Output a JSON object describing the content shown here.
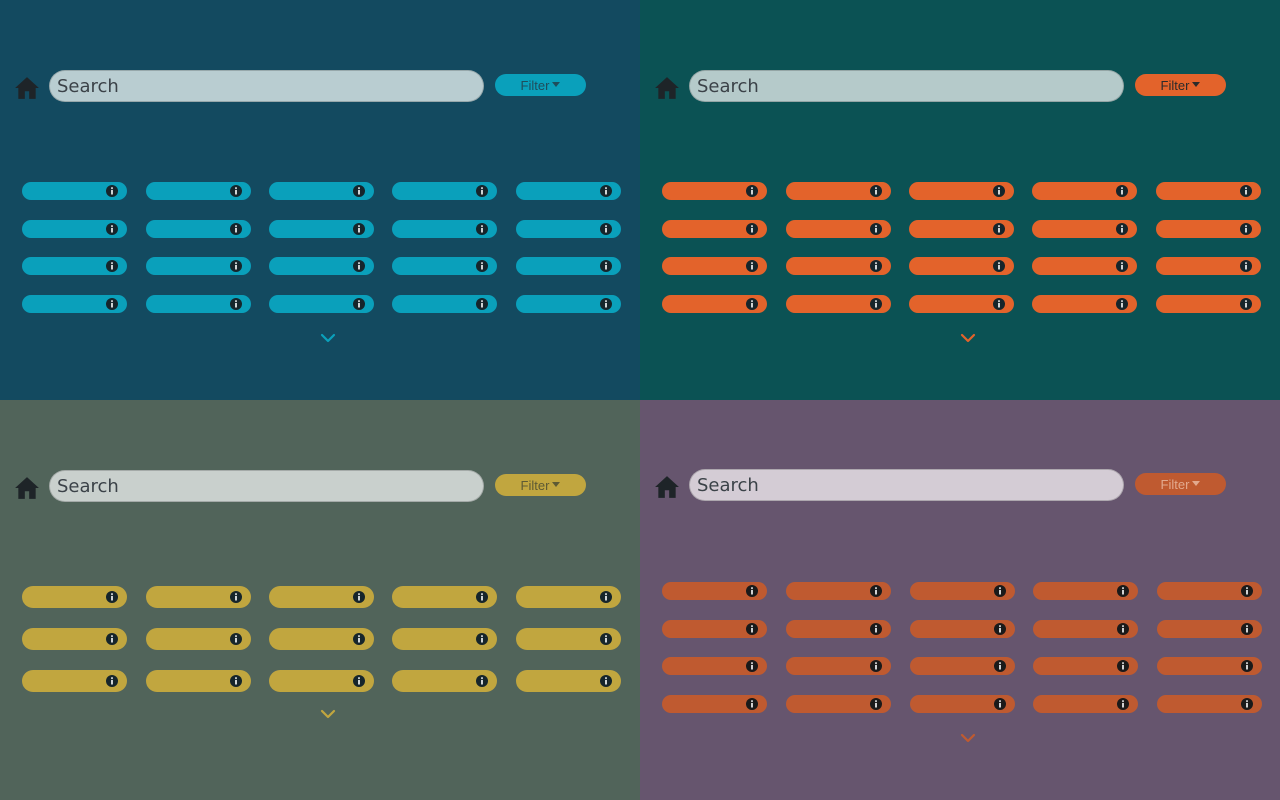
{
  "panels": [
    {
      "id": "teal",
      "background": "#134a60",
      "accent": "#0aa0bb",
      "search_bg": "#b9cdd1",
      "search_placeholder": "Search",
      "filter_label": "Filter",
      "filter_text_color": "#1f4d5c",
      "home_icon": "home-icon",
      "info_icon": "info-icon",
      "more_icon": "chevron-down-icon",
      "info_bg": "#16252b",
      "info_fg": "#ffffff",
      "rows": 4,
      "cols": 5
    },
    {
      "id": "orange",
      "background": "#0b5254",
      "accent": "#e3632b",
      "search_bg": "#b5caca",
      "search_placeholder": "Search",
      "filter_label": "Filter",
      "filter_text_color": "#2b2b2b",
      "home_icon": "home-icon",
      "info_icon": "info-icon",
      "more_icon": "chevron-down-icon",
      "info_bg": "#16252b",
      "info_fg": "#ffffff",
      "rows": 4,
      "cols": 5
    },
    {
      "id": "yellow",
      "background": "#51645a",
      "accent": "#c1a63f",
      "search_bg": "#c9d0cd",
      "search_placeholder": "Search",
      "filter_label": "Filter",
      "filter_text_color": "#5d5a34",
      "home_icon": "home-icon",
      "info_icon": "info-icon",
      "more_icon": "chevron-down-icon",
      "info_bg": "#16252b",
      "info_fg": "#ffffff",
      "rows": 3,
      "cols": 5
    },
    {
      "id": "violet",
      "background": "#66556e",
      "accent": "#bf5a30",
      "search_bg": "#d4ccd5",
      "search_placeholder": "Search",
      "filter_label": "Filter",
      "filter_text_color": "#e2a98e",
      "home_icon": "home-icon",
      "info_icon": "info-icon",
      "more_icon": "chevron-down-icon",
      "info_bg": "#1a1a1a",
      "info_fg": "#ffffff",
      "rows": 4,
      "cols": 5
    }
  ]
}
